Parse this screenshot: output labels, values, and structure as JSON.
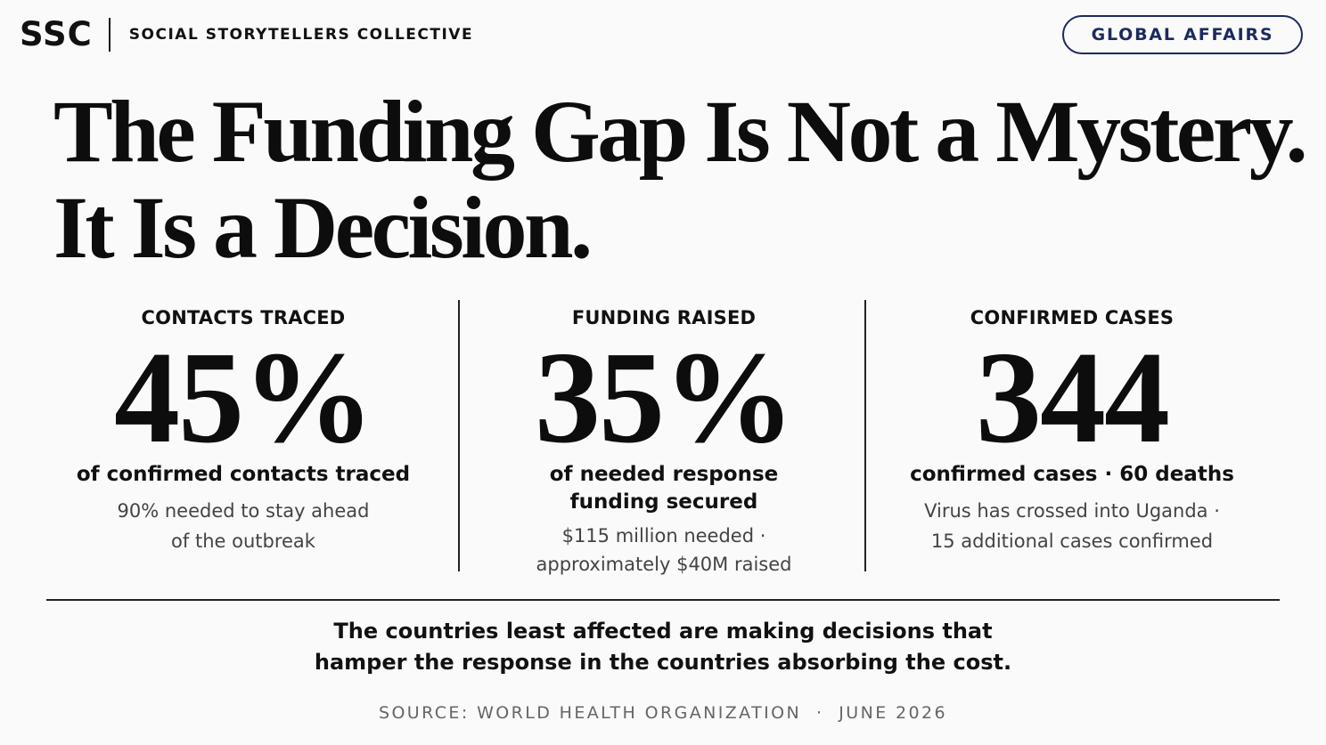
{
  "header": {
    "brand_logo": "SSC",
    "brand_name": "SOCIAL STORYTELLERS COLLECTIVE",
    "category": "GLOBAL AFFAIRS"
  },
  "headline": {
    "line1": "The Funding Gap Is Not a Mystery.",
    "line2": "It Is a Decision."
  },
  "stats": [
    {
      "label": "CONTACTS TRACED",
      "value": "45%",
      "description": [
        "of confirmed contacts traced"
      ],
      "note": [
        "90% needed to stay ahead",
        "of the outbreak"
      ]
    },
    {
      "label": "FUNDING RAISED",
      "value": "35%",
      "description": [
        "of needed response",
        "funding secured"
      ],
      "note": [
        "$115 million needed ·",
        "approximately $40M raised"
      ]
    },
    {
      "label": "CONFIRMED CASES",
      "value": "344",
      "description": [
        "confirmed cases · 60 deaths"
      ],
      "note": [
        "Virus has crossed into Uganda ·",
        "15 additional cases confirmed"
      ]
    }
  ],
  "takeaway": {
    "line1": "The countries least affected are making decisions that",
    "line2": "hamper the response in the countries absorbing the cost."
  },
  "source": "SOURCE: WORLD HEALTH ORGANIZATION  ·  JUNE 2026",
  "colors": {
    "accent": "#1b2a5e",
    "text": "#111111",
    "muted": "#444444",
    "background": "#fafafa"
  }
}
